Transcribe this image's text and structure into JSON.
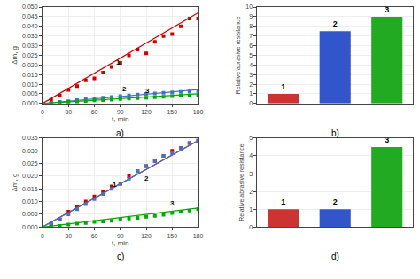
{
  "chart_data": [
    {
      "type": "scatter",
      "title": "a)",
      "xlabel": "t, min",
      "ylabel": "Δm, g",
      "xlim": [
        0,
        180
      ],
      "ylim": [
        0,
        0.05
      ],
      "xticks": [
        0,
        30,
        60,
        90,
        120,
        150,
        180
      ],
      "yticks": [
        {
          "value": 0,
          "label": "0.000"
        },
        {
          "value": 0.005,
          "label": "0.005"
        },
        {
          "value": 0.01,
          "label": "0.010"
        },
        {
          "value": 0.015,
          "label": "0.015"
        },
        {
          "value": 0.02,
          "label": "0.020"
        },
        {
          "value": 0.025,
          "label": "0.025"
        },
        {
          "value": 0.03,
          "label": "0.030"
        },
        {
          "value": 0.035,
          "label": "0.035"
        },
        {
          "value": 0.04,
          "label": "0.040"
        },
        {
          "value": 0.045,
          "label": "0.045"
        },
        {
          "value": 0.05,
          "label": "0.050"
        }
      ],
      "grid": true,
      "series": [
        {
          "name": "1",
          "color": "#cc0000",
          "marker": "square",
          "x": [
            10,
            20,
            30,
            40,
            50,
            60,
            70,
            80,
            90,
            100,
            110,
            120,
            130,
            140,
            150,
            160,
            170,
            180
          ],
          "values": [
            0.002,
            0.004,
            0.007,
            0.009,
            0.012,
            0.013,
            0.016,
            0.019,
            0.021,
            0.025,
            0.028,
            0.026,
            0.032,
            0.035,
            0.036,
            0.04,
            0.044,
            0.044
          ],
          "fit": {
            "x": [
              0,
              180
            ],
            "values": [
              0,
              0.047
            ]
          },
          "label_at": {
            "x": 88,
            "y": 0.0215
          }
        },
        {
          "name": "2",
          "color": "#4472c4",
          "marker": "square",
          "x": [
            10,
            20,
            30,
            40,
            50,
            60,
            70,
            80,
            90,
            100,
            110,
            120,
            130,
            140,
            150,
            160,
            170,
            180
          ],
          "values": [
            0.0004,
            0.0008,
            0.0012,
            0.0017,
            0.0022,
            0.0026,
            0.003,
            0.0034,
            0.0038,
            0.0042,
            0.0046,
            0.005,
            0.0052,
            0.0055,
            0.0058,
            0.006,
            0.0062,
            0.0065
          ],
          "fit": {
            "x": [
              0,
              180
            ],
            "values": [
              0,
              0.0072
            ]
          },
          "label_at": {
            "x": 95,
            "y": 0.0073
          }
        },
        {
          "name": "3",
          "color": "#00aa00",
          "marker": "square",
          "x": [
            10,
            20,
            30,
            40,
            50,
            60,
            70,
            80,
            90,
            100,
            110,
            120,
            130,
            140,
            150,
            160,
            170,
            180
          ],
          "values": [
            0.0002,
            0.0005,
            0.0008,
            0.001,
            0.0013,
            0.0016,
            0.0018,
            0.002,
            0.0023,
            0.0025,
            0.0028,
            0.003,
            0.0032,
            0.0035,
            0.0038,
            0.004,
            0.0042,
            0.0044
          ],
          "fit": {
            "x": [
              0,
              180
            ],
            "values": [
              0,
              0.005
            ]
          },
          "label_at": {
            "x": 122,
            "y": 0.0068
          }
        }
      ]
    },
    {
      "type": "bar",
      "title": "b)",
      "ylabel": "Relative abrasive resistance",
      "categories": [
        "1",
        "2",
        "3"
      ],
      "values": [
        1.0,
        7.5,
        9.0
      ],
      "colors": [
        "#cc3333",
        "#3355cc",
        "#22aa22"
      ],
      "ylim": [
        0,
        10
      ],
      "yticks": [
        0,
        1,
        2,
        3,
        4,
        5,
        6,
        7,
        8,
        9,
        10
      ],
      "grid": "y",
      "tick_labels": "y"
    },
    {
      "type": "scatter",
      "title": "c)",
      "xlabel": "t, min",
      "ylabel": "Δm, g",
      "xlim": [
        0,
        180
      ],
      "ylim": [
        0,
        0.035
      ],
      "xticks": [
        0,
        30,
        60,
        90,
        120,
        150,
        180
      ],
      "yticks": [
        {
          "value": 0,
          "label": "0.000"
        },
        {
          "value": 0.005,
          "label": "0.005"
        },
        {
          "value": 0.01,
          "label": "0.010"
        },
        {
          "value": 0.015,
          "label": "0.015"
        },
        {
          "value": 0.02,
          "label": "0.020"
        },
        {
          "value": 0.025,
          "label": "0.025"
        },
        {
          "value": 0.03,
          "label": "0.030"
        },
        {
          "value": 0.035,
          "label": "0.035"
        }
      ],
      "grid": true,
      "series": [
        {
          "name": "1",
          "color": "#cc0000",
          "marker": "square",
          "x": [
            10,
            20,
            30,
            40,
            50,
            60,
            70,
            80,
            90,
            100,
            110,
            120,
            130,
            140,
            150,
            160,
            170,
            180
          ],
          "values": [
            0.001,
            0.003,
            0.006,
            0.008,
            0.01,
            0.012,
            0.014,
            0.016,
            0.017,
            0.02,
            0.022,
            0.024,
            0.026,
            0.028,
            0.03,
            0.031,
            0.033,
            0.034
          ],
          "fit": {
            "x": [
              0,
              180
            ],
            "values": [
              0,
              0.034
            ]
          },
          "label_at": {
            "x": 84,
            "y": 0.0165
          }
        },
        {
          "name": "2",
          "color": "#4472c4",
          "marker": "square",
          "x": [
            10,
            20,
            30,
            40,
            50,
            60,
            70,
            80,
            90,
            100,
            110,
            120,
            130,
            140,
            150,
            160,
            170,
            180
          ],
          "values": [
            0.0015,
            0.003,
            0.005,
            0.007,
            0.009,
            0.011,
            0.013,
            0.015,
            0.017,
            0.019,
            0.022,
            0.024,
            0.026,
            0.028,
            0.029,
            0.031,
            0.033,
            0.034
          ],
          "fit": {
            "x": [
              0,
              180
            ],
            "values": [
              0,
              0.034
            ]
          },
          "label_at": {
            "x": 120,
            "y": 0.019
          }
        },
        {
          "name": "3",
          "color": "#00aa00",
          "marker": "square",
          "x": [
            10,
            20,
            30,
            40,
            50,
            60,
            70,
            80,
            90,
            100,
            110,
            120,
            130,
            140,
            150,
            160,
            170,
            180
          ],
          "values": [
            0.0002,
            0.0005,
            0.001,
            0.0013,
            0.0016,
            0.002,
            0.0022,
            0.0025,
            0.003,
            0.0033,
            0.0036,
            0.004,
            0.0044,
            0.0048,
            0.0055,
            0.006,
            0.0065,
            0.007
          ],
          "fit": {
            "x": [
              0,
              180
            ],
            "values": [
              0,
              0.0075
            ]
          },
          "label_at": {
            "x": 150,
            "y": 0.0093
          }
        }
      ]
    },
    {
      "type": "bar",
      "title": "d)",
      "ylabel": "Relative abrasive resistance",
      "categories": [
        "1",
        "2",
        "3"
      ],
      "values": [
        1.0,
        1.0,
        4.5
      ],
      "colors": [
        "#cc3333",
        "#3355cc",
        "#22aa22"
      ],
      "ylim": [
        0,
        5
      ],
      "yticks": [
        0,
        1,
        2,
        3,
        4,
        5
      ],
      "grid": "y",
      "tick_labels": "y"
    }
  ]
}
